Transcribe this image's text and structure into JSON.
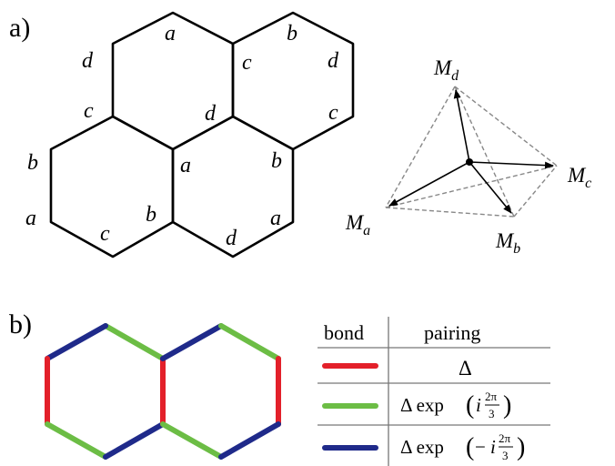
{
  "panel_a": {
    "label": "a)",
    "edge_labels": {
      "h1_top": "a",
      "h1_left_upper": "d",
      "h1_left_lower": "c",
      "h1_right": "d",
      "h2_top": "b",
      "h2_left": "c",
      "h2_right_upper": "d",
      "h2_right_lower": "c",
      "h3_left_upper": "b",
      "h3_left_lower": "a",
      "h3_bottom": "c",
      "h3_right": "b",
      "h4_left": "a",
      "h4_right_upper": "b",
      "h4_bottom": "d",
      "h4_right_lower": "a"
    },
    "tetrahedron": {
      "md": {
        "base": "M",
        "sub": "d"
      },
      "mc": {
        "base": "M",
        "sub": "c"
      },
      "ma": {
        "base": "M",
        "sub": "a"
      },
      "mb": {
        "base": "M",
        "sub": "b"
      }
    }
  },
  "panel_b": {
    "label": "b)",
    "colors": {
      "red": "#e3202a",
      "green": "#6cbd45",
      "blue": "#1f2a8a"
    },
    "table": {
      "header_bond": "bond",
      "header_pairing": "pairing",
      "rows": [
        {
          "bond_color": "red",
          "pairing": "Δ"
        },
        {
          "bond_color": "green",
          "pairing_prefix": "Δ exp",
          "pairing_sign": "",
          "frac_num": "2π",
          "frac_den": "3"
        },
        {
          "bond_color": "blue",
          "pairing_prefix": "Δ exp",
          "pairing_sign": "−",
          "frac_num": "2π",
          "frac_den": "3"
        }
      ]
    }
  }
}
